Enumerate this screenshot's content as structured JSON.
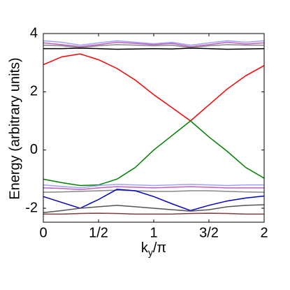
{
  "chart_data": {
    "type": "line",
    "xlabel": "ky/π",
    "ylabel": "Energy (arbitrary units)",
    "x": [
      0,
      0.167,
      0.333,
      0.5,
      0.667,
      0.833,
      1,
      1.167,
      1.333,
      1.5,
      1.667,
      1.833,
      2
    ],
    "series": [
      {
        "color": "#a0a0ff",
        "values": [
          3.75,
          3.7,
          3.6,
          3.68,
          3.75,
          3.7,
          3.65,
          3.7,
          3.6,
          3.68,
          3.75,
          3.7,
          3.75
        ]
      },
      {
        "color": "#c060c0",
        "values": [
          3.68,
          3.62,
          3.55,
          3.62,
          3.7,
          3.66,
          3.62,
          3.66,
          3.55,
          3.62,
          3.7,
          3.64,
          3.68
        ]
      },
      {
        "color": "#888888",
        "values": [
          3.6,
          3.58,
          3.52,
          3.58,
          3.62,
          3.6,
          3.58,
          3.6,
          3.52,
          3.58,
          3.62,
          3.6,
          3.6
        ]
      },
      {
        "color": "#000000",
        "values": [
          3.48,
          3.48,
          3.5,
          3.48,
          3.46,
          3.47,
          3.48,
          3.47,
          3.5,
          3.48,
          3.46,
          3.47,
          3.48
        ]
      },
      {
        "color": "#ff0000",
        "values": [
          2.93,
          3.2,
          3.3,
          3.1,
          2.8,
          2.4,
          1.9,
          1.45,
          1.0,
          1.55,
          2.1,
          2.55,
          2.9
        ]
      },
      {
        "color": "#008000",
        "values": [
          -1.0,
          -1.12,
          -1.22,
          -1.2,
          -1.0,
          -0.6,
          0.0,
          0.5,
          1.0,
          0.45,
          -0.05,
          -0.6,
          -0.97
        ]
      },
      {
        "color": "#a0a0ff",
        "values": [
          -1.2,
          -1.25,
          -1.3,
          -1.22,
          -1.18,
          -1.2,
          -1.22,
          -1.2,
          -1.18,
          -1.2,
          -1.22,
          -1.2,
          -1.2
        ]
      },
      {
        "color": "#c060c0",
        "values": [
          -1.3,
          -1.32,
          -1.36,
          -1.3,
          -1.26,
          -1.28,
          -1.3,
          -1.28,
          -1.26,
          -1.28,
          -1.3,
          -1.3,
          -1.3
        ]
      },
      {
        "color": "#888888",
        "values": [
          -1.45,
          -1.44,
          -1.42,
          -1.4,
          -1.38,
          -1.4,
          -1.42,
          -1.42,
          -1.4,
          -1.4,
          -1.42,
          -1.44,
          -1.45
        ]
      },
      {
        "color": "#0000cc",
        "values": [
          -1.6,
          -1.8,
          -2.0,
          -1.7,
          -1.35,
          -1.4,
          -1.6,
          -1.85,
          -2.08,
          -1.9,
          -1.75,
          -1.65,
          -1.58
        ]
      },
      {
        "color": "#555555",
        "values": [
          -2.15,
          -2.08,
          -2.0,
          -1.95,
          -1.9,
          -1.95,
          -2.0,
          -2.05,
          -2.1,
          -2.05,
          -1.95,
          -1.9,
          -1.88
        ]
      },
      {
        "color": "#804040",
        "values": [
          -2.2,
          -2.2,
          -2.18,
          -2.17,
          -2.18,
          -2.2,
          -2.2,
          -2.2,
          -2.18,
          -2.17,
          -2.18,
          -2.2,
          -2.2
        ]
      }
    ],
    "xlim": [
      0,
      2
    ],
    "xticks": [
      0,
      {
        "value": 0.5,
        "label": "1/2"
      },
      1,
      {
        "value": 1.5,
        "label": "3/2"
      },
      2
    ],
    "ylim": [
      -2.48,
      4
    ],
    "yticks": [
      -2,
      0,
      2,
      4
    ]
  }
}
